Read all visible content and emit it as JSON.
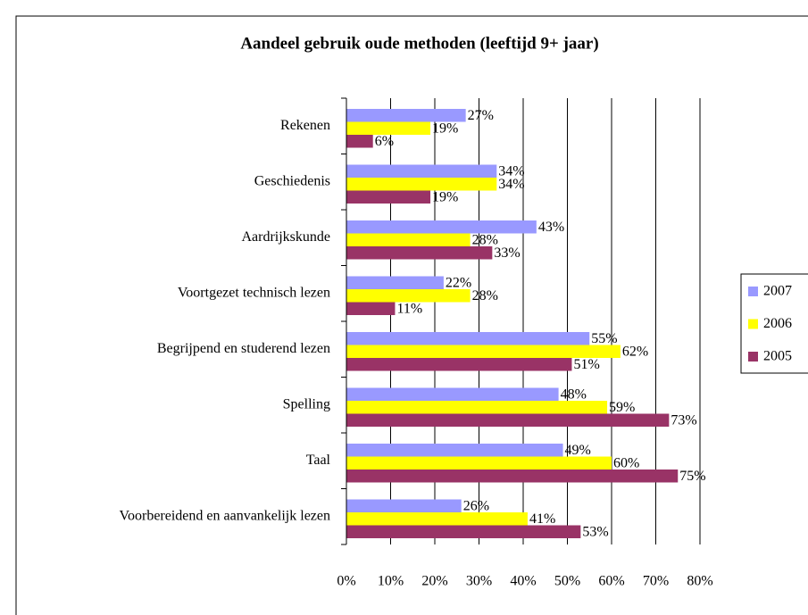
{
  "chart_data": {
    "type": "barh",
    "title": "Aandeel gebruik oude methoden (leeftijd 9+ jaar)",
    "categories": [
      "Rekenen",
      "Geschiedenis",
      "Aardrijkskunde",
      "Voortgezet technisch lezen",
      "Begrijpend en studerend lezen",
      "Spelling",
      "Taal",
      "Voorbereidend en aanvankelijk lezen"
    ],
    "series": [
      {
        "name": "2007",
        "color": "#9999ff",
        "values": [
          27,
          34,
          43,
          22,
          55,
          48,
          49,
          26
        ],
        "value_labels": [
          "27%",
          "34%",
          "43%",
          "22%",
          "55%",
          "48%",
          "49%",
          "26%"
        ]
      },
      {
        "name": "2006",
        "color": "#ffff00",
        "values": [
          19,
          34,
          28,
          28,
          62,
          59,
          60,
          41
        ],
        "value_labels": [
          "19%",
          "34%",
          "28%",
          "28%",
          "62%",
          "59%",
          "60%",
          "41%"
        ]
      },
      {
        "name": "2005",
        "color": "#993366",
        "values": [
          6,
          19,
          33,
          11,
          51,
          73,
          75,
          53
        ],
        "value_labels": [
          "6%",
          "19%",
          "33%",
          "11%",
          "51%",
          "73%",
          "75%",
          "53%"
        ]
      }
    ],
    "xlim": [
      0,
      80
    ],
    "xticks": [
      {
        "value": 0,
        "label": "0%"
      },
      {
        "value": 10,
        "label": "10%"
      },
      {
        "value": 20,
        "label": "20%"
      },
      {
        "value": 30,
        "label": "30%"
      },
      {
        "value": 40,
        "label": "40%"
      },
      {
        "value": 50,
        "label": "50%"
      },
      {
        "value": 60,
        "label": "60%"
      },
      {
        "value": 70,
        "label": "70%"
      },
      {
        "value": 80,
        "label": "80%"
      }
    ],
    "grid": true,
    "legend": "right"
  }
}
